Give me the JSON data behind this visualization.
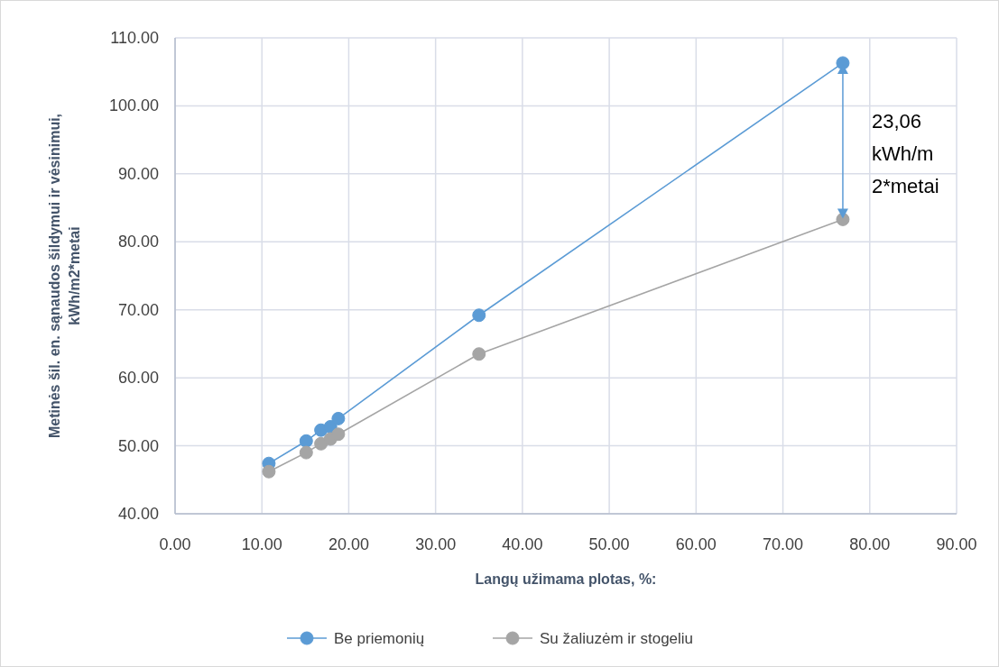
{
  "chart_data": {
    "type": "line",
    "xlabel": "Langų užimama plotas, %:",
    "ylabel": "Metinės šil. en. sąnaudos šildymui ir vėsinimui,\nkWh/m2*metai",
    "x": [
      10.8,
      15.1,
      16.8,
      17.9,
      18.8,
      35.0,
      76.9
    ],
    "series": [
      {
        "name": "Be priemonių",
        "color": "#5b9bd5",
        "values": [
          47.4,
          50.7,
          52.3,
          52.8,
          54.0,
          69.2,
          106.3
        ]
      },
      {
        "name": "Su žaliuzėm ir stogeliu",
        "color": "#a5a5a5",
        "values": [
          46.2,
          49.0,
          50.3,
          51.0,
          51.7,
          63.5,
          83.3
        ]
      }
    ],
    "xlim": [
      0,
      90
    ],
    "xticks": [
      {
        "value": 0,
        "label": "0.00"
      },
      {
        "value": 10,
        "label": "10.00"
      },
      {
        "value": 20,
        "label": "20.00"
      },
      {
        "value": 30,
        "label": "30.00"
      },
      {
        "value": 40,
        "label": "40.00"
      },
      {
        "value": 50,
        "label": "50.00"
      },
      {
        "value": 60,
        "label": "60.00"
      },
      {
        "value": 70,
        "label": "70.00"
      },
      {
        "value": 80,
        "label": "80.00"
      },
      {
        "value": 90,
        "label": "90.00"
      }
    ],
    "ylim": [
      40,
      110
    ],
    "yticks": [
      {
        "value": 40,
        "label": "40.00"
      },
      {
        "value": 50,
        "label": "50.00"
      },
      {
        "value": 60,
        "label": "60.00"
      },
      {
        "value": 70,
        "label": "70.00"
      },
      {
        "value": 80,
        "label": "80.00"
      },
      {
        "value": 90,
        "label": "90.00"
      },
      {
        "value": 100,
        "label": "100.00"
      },
      {
        "value": 110,
        "label": "110.00"
      }
    ],
    "annotations": [
      "23,06\nkWh/m\n2*metai"
    ],
    "grid": true,
    "legend": "bottom",
    "marker": "circle",
    "line_style": "solid"
  }
}
